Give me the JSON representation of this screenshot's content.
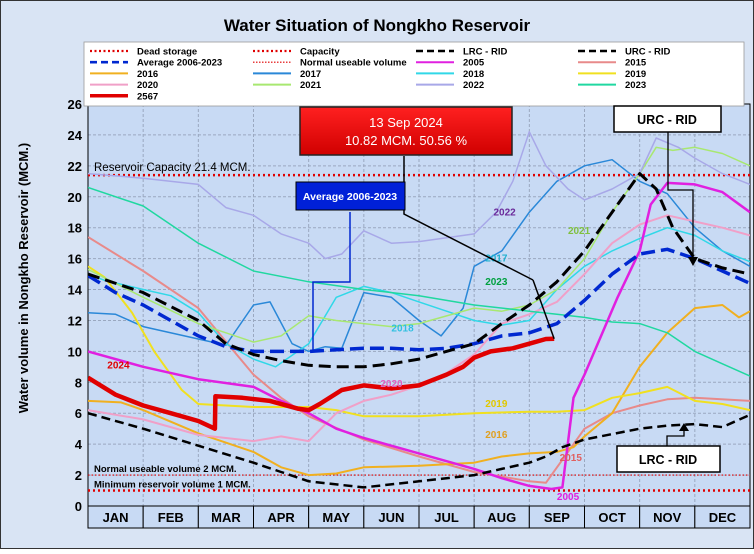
{
  "chart_data": {
    "type": "line",
    "title": "Water Situation of Nongkho Reservoir",
    "ylabel": "Water volume in Nongkho Reservoir (MCM.)",
    "xlabel": "",
    "ylim": [
      0,
      26
    ],
    "yticks": [
      0,
      2,
      4,
      6,
      8,
      10,
      12,
      14,
      16,
      18,
      20,
      22,
      24,
      26
    ],
    "categories": [
      "JAN",
      "FEB",
      "MAR",
      "APR",
      "MAY",
      "JUN",
      "JUL",
      "AUG",
      "SEP",
      "OCT",
      "NOV",
      "DEC"
    ],
    "grid": true,
    "colors": {
      "plot_background": "#c8daf4",
      "page_background": "#d9e4f4",
      "reference_red": "#e00000"
    },
    "reference_lines": [
      {
        "name": "Capacity",
        "value": 21.4,
        "label": "Reservoir Capacity 21.4 MCM.",
        "color": "#e00000",
        "style": "dotted-thick"
      },
      {
        "name": "Normal useable volume",
        "value": 2,
        "label": "Normal useable volume 2 MCM.",
        "color": "#e00000",
        "style": "dotted-thin"
      },
      {
        "name": "Dead storage",
        "value": 1,
        "label": "Minimum reservoir volume 1 MCM.",
        "color": "#e00000",
        "style": "dotted-thick"
      }
    ],
    "series": [
      {
        "name": "2015",
        "color": "#e88a8a",
        "width": 2,
        "x": [
          0,
          1,
          2,
          2.6,
          3,
          3.5,
          4,
          5,
          6,
          7,
          7.5,
          8,
          8.3,
          8.7,
          9,
          9.5,
          10,
          10.5,
          11,
          12
        ],
        "y": [
          17.4,
          15.2,
          12.8,
          10.2,
          8.5,
          7.0,
          5.8,
          4.3,
          3.2,
          2.2,
          1.9,
          1.6,
          1.5,
          3.5,
          5.0,
          6.0,
          6.5,
          6.9,
          7.0,
          6.8
        ]
      },
      {
        "name": "2016",
        "color": "#f0b020",
        "width": 2,
        "x": [
          0,
          0.6,
          1,
          2,
          3,
          3.5,
          4,
          4.5,
          5,
          6,
          7,
          7.5,
          8,
          8.5,
          8.8,
          9,
          9.5,
          10,
          10.5,
          11,
          11.5,
          11.8,
          12
        ],
        "y": [
          6.8,
          6.7,
          6.2,
          4.7,
          3.5,
          2.5,
          2.0,
          2.1,
          2.5,
          2.6,
          2.8,
          3.2,
          3.4,
          3.5,
          3.8,
          4.5,
          6.0,
          9.0,
          11.2,
          12.8,
          13.0,
          12.2,
          12.6
        ]
      },
      {
        "name": "2017",
        "color": "#2a88d8",
        "width": 1.5,
        "x": [
          0,
          0.5,
          1,
          2,
          2.5,
          3,
          3.3,
          3.7,
          4,
          4.3,
          4.6,
          5,
          5.5,
          6,
          6.4,
          6.8,
          7,
          7.5,
          8,
          8.5,
          9,
          9.5,
          10,
          10.5,
          11,
          11.5,
          12
        ],
        "y": [
          12.5,
          12.4,
          11.6,
          10.8,
          10.4,
          13.0,
          13.2,
          10.5,
          10.0,
          10.3,
          10.2,
          13.8,
          13.5,
          12.0,
          11.0,
          12.8,
          15.5,
          16.5,
          19.0,
          21.0,
          22.0,
          22.4,
          21.0,
          20.2,
          18.0,
          16.5,
          15.5
        ]
      },
      {
        "name": "2018",
        "color": "#30d8e8",
        "width": 1.5,
        "x": [
          0,
          0.3,
          1,
          1.5,
          2,
          2.5,
          3,
          3.4,
          4,
          4.5,
          5,
          5.5,
          6,
          6.5,
          7,
          7.5,
          8,
          8.5,
          9,
          9.5,
          10,
          10.5,
          11,
          11.5,
          12
        ],
        "y": [
          15.0,
          14.6,
          14.0,
          13.6,
          12.5,
          10.5,
          9.5,
          9.0,
          10.5,
          13.5,
          14.2,
          13.8,
          13.2,
          12.6,
          12.0,
          11.7,
          12.0,
          14.0,
          15.5,
          16.5,
          17.3,
          18.0,
          17.5,
          16.5,
          15.8
        ]
      },
      {
        "name": "2019",
        "color": "#f0e020",
        "width": 2,
        "x": [
          0,
          0.3,
          0.8,
          1.2,
          1.7,
          2,
          3,
          4,
          4.5,
          5,
          6,
          7,
          8,
          8.5,
          9,
          9.5,
          10,
          10.5,
          11,
          11.5,
          12
        ],
        "y": [
          15.5,
          14.8,
          12.5,
          10.0,
          7.5,
          6.6,
          6.4,
          6.4,
          6.2,
          5.8,
          5.8,
          6.0,
          6.1,
          6.1,
          6.2,
          7.0,
          7.3,
          7.7,
          6.8,
          6.6,
          6.2
        ]
      },
      {
        "name": "2020",
        "color": "#f0a0c8",
        "width": 2,
        "x": [
          0,
          1,
          2,
          3,
          3.5,
          4,
          4.5,
          5,
          5.5,
          6,
          6.5,
          7,
          7.5,
          8,
          8.5,
          9,
          9.5,
          10,
          10.5,
          11,
          11.5,
          12
        ],
        "y": [
          6.2,
          5.6,
          4.6,
          4.2,
          4.5,
          4.2,
          6.0,
          6.8,
          7.2,
          7.8,
          8.6,
          9.8,
          11.8,
          12.4,
          13.2,
          15.0,
          17.0,
          18.2,
          18.8,
          18.4,
          18.0,
          17.5
        ]
      },
      {
        "name": "2021",
        "color": "#a8e870",
        "width": 1.5,
        "x": [
          0,
          1,
          2,
          2.5,
          3,
          3.5,
          4,
          4.5,
          5,
          5.5,
          6,
          7,
          7.5,
          8,
          8.5,
          9,
          9.5,
          10,
          10.3,
          10.6,
          11,
          11.5,
          12
        ],
        "y": [
          15.3,
          13.5,
          11.8,
          11.2,
          10.6,
          11.0,
          12.3,
          12.0,
          11.8,
          11.6,
          11.8,
          12.8,
          12.6,
          13.0,
          14.0,
          16.0,
          19.0,
          21.5,
          23.2,
          23.0,
          23.2,
          22.8,
          22.0
        ]
      },
      {
        "name": "2022",
        "color": "#a8a8e8",
        "width": 1.5,
        "x": [
          0,
          1,
          2,
          2.5,
          3,
          3.5,
          4,
          4.3,
          4.6,
          5,
          5.5,
          6,
          7,
          7.4,
          7.7,
          8,
          8.3,
          8.7,
          9,
          9.5,
          10,
          10.3,
          10.5,
          10.7,
          11,
          11.5,
          12
        ],
        "y": [
          21.5,
          21.2,
          20.8,
          19.3,
          18.8,
          17.6,
          17.0,
          16.0,
          16.3,
          17.8,
          17.0,
          17.1,
          17.6,
          19.0,
          21.0,
          24.2,
          22.0,
          20.5,
          19.8,
          20.5,
          21.5,
          23.8,
          23.5,
          23.2,
          22.5,
          21.5,
          20.8
        ]
      },
      {
        "name": "2023",
        "color": "#20d8a0",
        "width": 1.5,
        "x": [
          0,
          1,
          2,
          3,
          4,
          5,
          6,
          7,
          8,
          8.5,
          9,
          9.5,
          10,
          10.5,
          11,
          11.5,
          12
        ],
        "y": [
          20.6,
          19.4,
          17.0,
          15.2,
          14.5,
          14.0,
          13.6,
          13.0,
          12.6,
          12.4,
          12.2,
          11.9,
          11.8,
          11.2,
          10.0,
          9.2,
          8.4
        ]
      },
      {
        "name": "2005",
        "color": "#e020e0",
        "width": 2.5,
        "x": [
          0,
          1,
          2,
          3,
          3.5,
          4,
          4.5,
          5,
          6,
          7,
          7.5,
          8,
          8.4,
          8.6,
          8.8,
          9,
          9.3,
          9.6,
          10,
          10.2,
          10.5,
          11,
          11.5,
          12
        ],
        "y": [
          10.0,
          9.0,
          8.2,
          7.7,
          6.8,
          6.0,
          5.0,
          4.4,
          3.4,
          2.4,
          1.8,
          1.3,
          1.1,
          1.2,
          7.0,
          8.5,
          11.0,
          13.5,
          16.5,
          19.5,
          20.9,
          20.8,
          20.3,
          19.0
        ]
      },
      {
        "name": "Average 2006-2023",
        "color": "#0028d0",
        "width": 3.5,
        "dash": "14,6",
        "x": [
          0,
          0.5,
          1,
          1.5,
          2,
          2.5,
          3,
          3.5,
          4,
          4.5,
          5,
          5.5,
          6,
          6.5,
          7,
          7.5,
          8,
          8.5,
          9,
          9.5,
          10,
          10.5,
          11,
          11.5,
          12
        ],
        "y": [
          14.9,
          13.8,
          13.0,
          12.0,
          11.0,
          10.3,
          10.0,
          10.0,
          10.0,
          10.1,
          10.2,
          10.2,
          10.1,
          10.2,
          10.5,
          11.0,
          11.2,
          11.8,
          13.3,
          15.0,
          16.3,
          16.6,
          16.0,
          15.2,
          14.4
        ]
      },
      {
        "name": "URC - RID",
        "color": "#000000",
        "width": 3,
        "dash": "12,6",
        "x": [
          0,
          1,
          2,
          2.5,
          3,
          3.5,
          4,
          4.5,
          5,
          5.5,
          6,
          7,
          7.5,
          8,
          8.5,
          9,
          9.5,
          10,
          10.3,
          10.6,
          11,
          11.5,
          12
        ],
        "y": [
          15.0,
          13.8,
          12.0,
          10.5,
          9.8,
          9.4,
          9.1,
          9.0,
          9.0,
          9.2,
          9.5,
          10.5,
          11.8,
          13.0,
          14.5,
          16.5,
          19.0,
          21.5,
          20.5,
          18.0,
          16.0,
          15.4,
          15.0
        ]
      },
      {
        "name": "LRC - RID",
        "color": "#000000",
        "width": 2.5,
        "dash": "9,5",
        "x": [
          0,
          1,
          2,
          3,
          3.5,
          4,
          4.5,
          5,
          6,
          7,
          7.5,
          8,
          8.3,
          8.6,
          9,
          10,
          10.5,
          11,
          11.5,
          12
        ],
        "y": [
          6.0,
          5.0,
          3.9,
          2.8,
          2.2,
          1.6,
          1.4,
          1.2,
          1.6,
          2.0,
          2.4,
          2.8,
          3.2,
          3.8,
          4.3,
          5.0,
          5.2,
          5.3,
          5.1,
          5.9
        ]
      },
      {
        "name": "2567",
        "color": "#e00000",
        "width": 4.5,
        "x": [
          0,
          0.5,
          1,
          1.5,
          2,
          2.3,
          2.31,
          2.8,
          3.3,
          3.8,
          4,
          4.2,
          4.6,
          5,
          5.5,
          6,
          6.5,
          6.8,
          7,
          7.3,
          7.7,
          8,
          8.3,
          8.45
        ],
        "y": [
          8.3,
          7.2,
          6.5,
          6.0,
          5.5,
          5.0,
          7.1,
          7.0,
          6.8,
          6.3,
          6.2,
          6.6,
          7.5,
          7.8,
          7.6,
          7.8,
          8.5,
          9.0,
          9.6,
          10.0,
          10.2,
          10.5,
          10.8,
          10.82
        ]
      }
    ],
    "legend": [
      {
        "label": "Dead storage",
        "color": "#e00000",
        "style": "dotted-thick"
      },
      {
        "label": "Capacity",
        "color": "#e00000",
        "style": "dotted-thick"
      },
      {
        "label": "LRC - RID",
        "color": "#000000",
        "style": "dashed"
      },
      {
        "label": "URC - RID",
        "color": "#000000",
        "style": "dashed"
      },
      {
        "label": "Average 2006-2023",
        "color": "#0028d0",
        "style": "dashed"
      },
      {
        "label": "Normal useable volume",
        "color": "#e00000",
        "style": "dotted-thin"
      },
      {
        "label": "2005",
        "color": "#e020e0",
        "style": "solid"
      },
      {
        "label": "2015",
        "color": "#e88a8a",
        "style": "solid"
      },
      {
        "label": "2016",
        "color": "#f0b020",
        "style": "solid"
      },
      {
        "label": "2017",
        "color": "#2a88d8",
        "style": "solid"
      },
      {
        "label": "2018",
        "color": "#30d8e8",
        "style": "solid"
      },
      {
        "label": "2019",
        "color": "#f0e020",
        "style": "solid"
      },
      {
        "label": "2020",
        "color": "#f0a0c8",
        "style": "solid"
      },
      {
        "label": "2021",
        "color": "#a8e870",
        "style": "solid"
      },
      {
        "label": "2022",
        "color": "#a8a8e8",
        "style": "solid"
      },
      {
        "label": "2023",
        "color": "#20d8a0",
        "style": "solid"
      },
      {
        "label": "2567",
        "color": "#e00000",
        "style": "solid-thick"
      }
    ],
    "annotations": {
      "current": {
        "line1": "13 Sep 2024",
        "line2": "10.82 MCM. 50.56 %",
        "x": 8.45,
        "y": 10.82
      },
      "average": {
        "label": "Average 2006-2023"
      },
      "urc": {
        "label": "URC - RID"
      },
      "lrc": {
        "label": "LRC - RID"
      },
      "series_labels": [
        {
          "text": "2022",
          "color": "#6a2a9a",
          "x": 7.35,
          "y": 18.8
        },
        {
          "text": "2021",
          "color": "#80c040",
          "x": 8.7,
          "y": 17.6
        },
        {
          "text": "2017",
          "color": "#20b0d0",
          "x": 7.2,
          "y": 15.8
        },
        {
          "text": "2023",
          "color": "#00a040",
          "x": 7.2,
          "y": 14.3
        },
        {
          "text": "2018",
          "color": "#30c0e0",
          "x": 5.5,
          "y": 11.3
        },
        {
          "text": "2020",
          "color": "#e060c0",
          "x": 5.3,
          "y": 7.7
        },
        {
          "text": "2024",
          "color": "#e00000",
          "x": 0.35,
          "y": 8.9
        },
        {
          "text": "2019",
          "color": "#e0c800",
          "x": 7.2,
          "y": 6.4
        },
        {
          "text": "2016",
          "color": "#e0a020",
          "x": 7.2,
          "y": 4.4
        },
        {
          "text": "2015",
          "color": "#e06060",
          "x": 8.55,
          "y": 2.9
        },
        {
          "text": "2005",
          "color": "#e020e0",
          "x": 8.5,
          "y": 0.4
        }
      ]
    }
  }
}
